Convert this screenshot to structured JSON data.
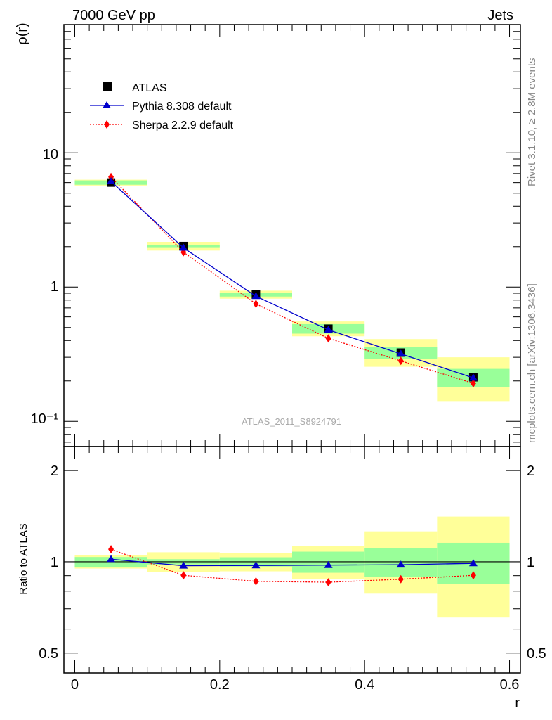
{
  "header": {
    "left": "7000 GeV pp",
    "right": "Jets"
  },
  "side_labels": {
    "rivet": "Rivet 3.1.10, ≥ 2.8M events",
    "mcplots": "mcplots.cern.ch [arXiv:1306.3436]"
  },
  "watermark": "ATLAS_2011_S8924791",
  "colors": {
    "data": "#000000",
    "pythia": "#0000cc",
    "sherpa": "#ff0000",
    "band_outer": "#ffff99",
    "band_inner": "#99ff99"
  },
  "chart_data": [
    {
      "type": "scatter",
      "panel": "main",
      "ylabel": "ρ(r)",
      "xlim": [
        -0.015,
        0.615
      ],
      "ylim": [
        0.065,
        90
      ],
      "log_y": true,
      "y_tick_labels": [
        "10",
        "1",
        "10⁻¹"
      ],
      "legend_placement": "top-left",
      "x": [
        0.05,
        0.15,
        0.25,
        0.35,
        0.45,
        0.55
      ],
      "series": [
        {
          "name": "ATLAS",
          "style": "markers-square",
          "values": [
            6.0,
            2.02,
            0.88,
            0.49,
            0.325,
            0.213
          ],
          "band_inner_lo": [
            5.78,
            1.98,
            0.85,
            0.45,
            0.29,
            0.18
          ],
          "band_inner_hi": [
            6.22,
            2.06,
            0.91,
            0.53,
            0.36,
            0.246
          ],
          "band_outer_lo": [
            5.7,
            1.87,
            0.82,
            0.43,
            0.255,
            0.14
          ],
          "band_outer_hi": [
            6.3,
            2.17,
            0.94,
            0.555,
            0.41,
            0.3
          ]
        },
        {
          "name": "Pythia 8.308 default",
          "style": "line-triangle",
          "values": [
            6.12,
            1.96,
            0.855,
            0.48,
            0.318,
            0.211
          ]
        },
        {
          "name": "Sherpa 2.2.9 default",
          "style": "dotted-diamond",
          "values": [
            6.6,
            1.82,
            0.75,
            0.415,
            0.282,
            0.192
          ]
        }
      ]
    },
    {
      "type": "scatter",
      "panel": "ratio",
      "ylabel": "Ratio to ATLAS",
      "xlabel": "r",
      "xlim": [
        -0.015,
        0.615
      ],
      "ylim": [
        0.43,
        2.4
      ],
      "log_y": true,
      "x_tick_labels": [
        "0",
        "0.2",
        "0.4",
        "0.6"
      ],
      "x_ticks": [
        0,
        0.2,
        0.4,
        0.6
      ],
      "y_tick_labels": [
        "2",
        "1",
        "0.5"
      ],
      "y_ticks": [
        2,
        1,
        0.5
      ],
      "x_edges": [
        0.0,
        0.1,
        0.2,
        0.3,
        0.4,
        0.5,
        0.6
      ],
      "band_inner_lo": [
        0.963,
        0.98,
        0.965,
        0.92,
        0.89,
        0.845
      ],
      "band_inner_hi": [
        1.037,
        1.02,
        1.035,
        1.08,
        1.11,
        1.155
      ],
      "band_outer_lo": [
        0.95,
        0.925,
        0.93,
        0.875,
        0.785,
        0.655
      ],
      "band_outer_hi": [
        1.05,
        1.075,
        1.07,
        1.13,
        1.26,
        1.41
      ],
      "series": [
        {
          "name": "Pythia 8.308 default",
          "values": [
            1.02,
            0.97,
            0.972,
            0.975,
            0.978,
            0.988
          ]
        },
        {
          "name": "Sherpa 2.2.9 default",
          "values": [
            1.1,
            0.902,
            0.862,
            0.856,
            0.876,
            0.902
          ]
        }
      ]
    }
  ]
}
